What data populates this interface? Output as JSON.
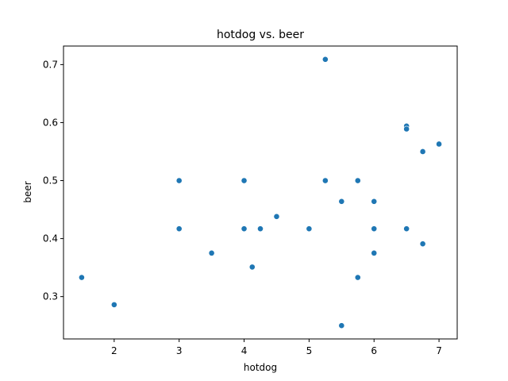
{
  "chart_data": {
    "type": "scatter",
    "title": "hotdog vs. beer",
    "xlabel": "hotdog",
    "ylabel": "beer",
    "xlim": [
      1.22,
      7.28
    ],
    "ylim": [
      0.227,
      0.732
    ],
    "xticks": [
      2,
      3,
      4,
      5,
      6,
      7
    ],
    "yticks": [
      0.3,
      0.4,
      0.5,
      0.6,
      0.7
    ],
    "xtick_labels": [
      "2",
      "3",
      "4",
      "5",
      "6",
      "7"
    ],
    "ytick_labels": [
      "0.3",
      "0.4",
      "0.5",
      "0.6",
      "0.7"
    ],
    "grid": false,
    "point_color": "#1f77b4",
    "points": [
      {
        "x": 1.5,
        "y": 0.333
      },
      {
        "x": 2.0,
        "y": 0.286
      },
      {
        "x": 3.0,
        "y": 0.5
      },
      {
        "x": 3.0,
        "y": 0.417
      },
      {
        "x": 3.5,
        "y": 0.375
      },
      {
        "x": 4.0,
        "y": 0.5
      },
      {
        "x": 4.0,
        "y": 0.417
      },
      {
        "x": 4.125,
        "y": 0.351
      },
      {
        "x": 4.25,
        "y": 0.417
      },
      {
        "x": 4.5,
        "y": 0.438
      },
      {
        "x": 5.0,
        "y": 0.417
      },
      {
        "x": 5.25,
        "y": 0.709
      },
      {
        "x": 5.25,
        "y": 0.5
      },
      {
        "x": 5.5,
        "y": 0.464
      },
      {
        "x": 5.5,
        "y": 0.25
      },
      {
        "x": 5.75,
        "y": 0.5
      },
      {
        "x": 5.75,
        "y": 0.333
      },
      {
        "x": 6.0,
        "y": 0.464
      },
      {
        "x": 6.0,
        "y": 0.417
      },
      {
        "x": 6.0,
        "y": 0.375
      },
      {
        "x": 6.5,
        "y": 0.594
      },
      {
        "x": 6.5,
        "y": 0.589
      },
      {
        "x": 6.5,
        "y": 0.417
      },
      {
        "x": 6.75,
        "y": 0.55
      },
      {
        "x": 6.75,
        "y": 0.391
      },
      {
        "x": 7.0,
        "y": 0.563
      }
    ]
  }
}
